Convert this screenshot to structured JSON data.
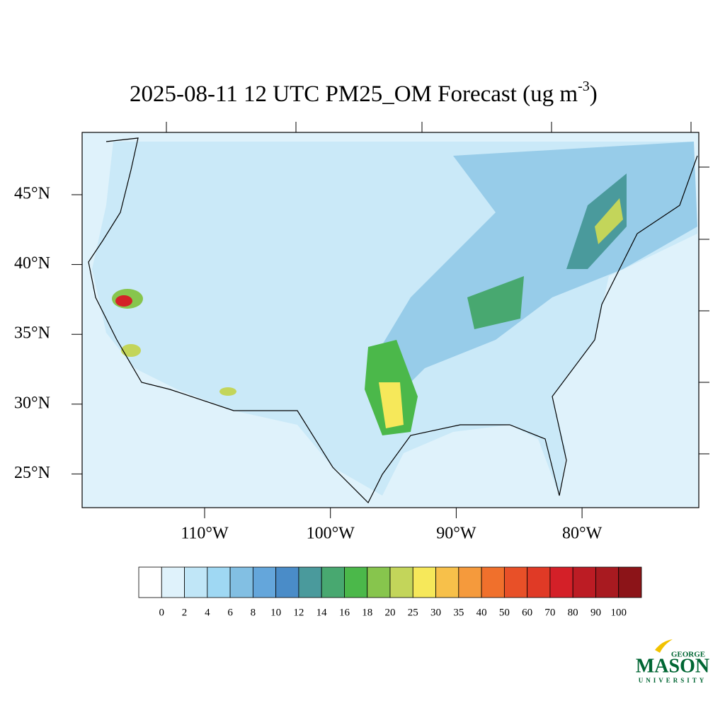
{
  "title": {
    "text": "2025-08-11 12 UTC PM25_OM Forecast (ug m",
    "superscript": "-3",
    "end": ")"
  },
  "lat_ticks": [
    {
      "value": 45,
      "label": "45°N"
    },
    {
      "value": 40,
      "label": "40°N"
    },
    {
      "value": 35,
      "label": "35°N"
    },
    {
      "value": 30,
      "label": "30°N"
    },
    {
      "value": 25,
      "label": "25°N"
    }
  ],
  "lon_ticks": [
    {
      "value": -110,
      "label": "110°W"
    },
    {
      "value": -100,
      "label": "100°W"
    },
    {
      "value": -90,
      "label": "90°W"
    },
    {
      "value": -80,
      "label": "80°W"
    }
  ],
  "colorbar": {
    "levels": [
      0,
      2,
      4,
      6,
      8,
      10,
      12,
      14,
      16,
      18,
      20,
      25,
      30,
      35,
      40,
      50,
      60,
      70,
      80,
      90,
      100
    ],
    "colors": [
      "#ffffff",
      "#dff2fb",
      "#c0e6f7",
      "#9fd8f3",
      "#82bfe3",
      "#64a6db",
      "#4a8cc8",
      "#4a9a9c",
      "#48a870",
      "#4bb84a",
      "#87c54d",
      "#c3d55a",
      "#f6e85a",
      "#f7c04a",
      "#f59a3c",
      "#f0702c",
      "#e85028",
      "#e03a26",
      "#d42028",
      "#bc1c24",
      "#a81a20",
      "#8c1418"
    ]
  },
  "logo": {
    "top": "GEORGE",
    "main": "MASON",
    "bottom": "UNIVERSITY"
  }
}
